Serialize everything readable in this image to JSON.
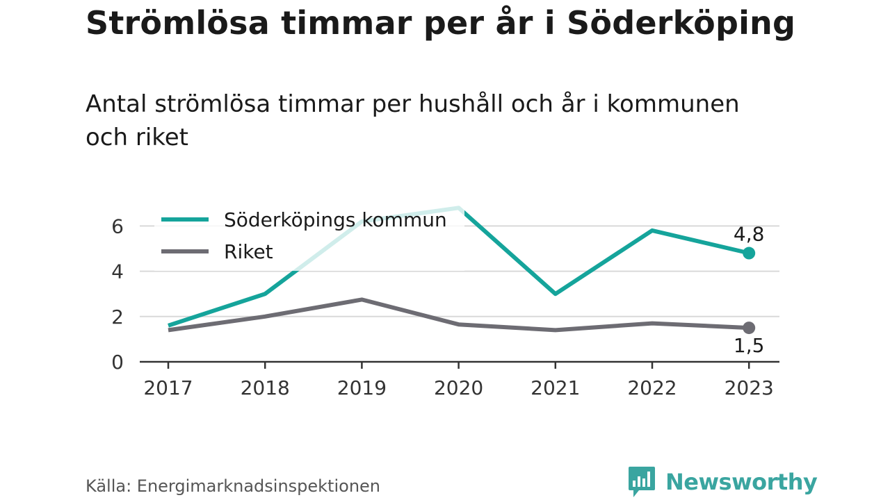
{
  "header": {
    "title": "Strömlösa timmar per år i Söderköping",
    "subtitle": "Antal strömlösa timmar per hushåll och år i kommunen och riket"
  },
  "footer": {
    "source": "Källa: Energimarknadsinspektionen",
    "brand": "Newsworthy",
    "brand_icon": "bar-chart-speech-bubble-icon",
    "brand_color": "#3aa5a0"
  },
  "chart_data": {
    "type": "line",
    "x": [
      "2017",
      "2018",
      "2019",
      "2020",
      "2021",
      "2022",
      "2023"
    ],
    "ylim": [
      0,
      7
    ],
    "yticks": [
      "0",
      "2",
      "4",
      "6"
    ],
    "grid": true,
    "legend_position": "top-left",
    "series": [
      {
        "name": "Söderköpings kommun",
        "color": "#15a49b",
        "values": [
          1.6,
          3.0,
          6.2,
          6.8,
          3.0,
          5.8,
          4.8
        ],
        "end_label": "4,8"
      },
      {
        "name": "Riket",
        "color": "#6d6c73",
        "values": [
          1.4,
          2.0,
          2.75,
          1.65,
          1.4,
          1.7,
          1.5
        ],
        "end_label": "1,5"
      }
    ]
  }
}
